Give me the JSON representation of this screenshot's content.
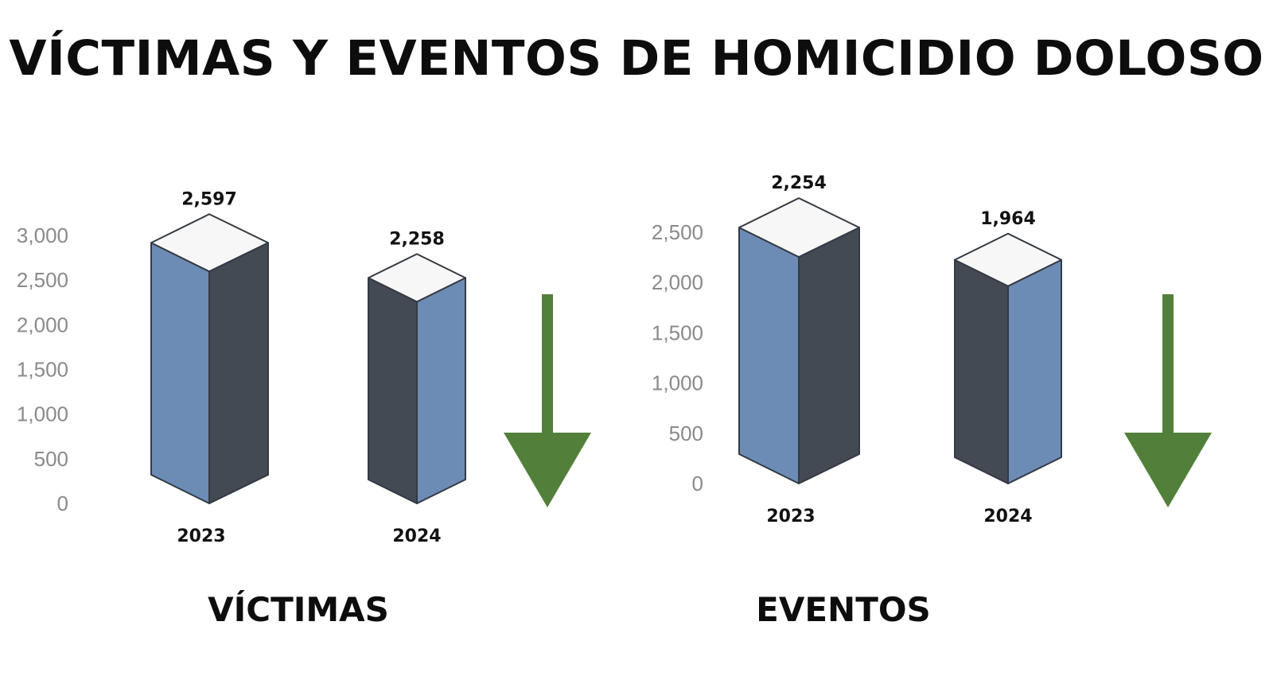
{
  "title": "VÍCTIMAS Y EVENTOS DE HOMICIDIO DOLOSO",
  "colors": {
    "blue_face": "#6d8cb5",
    "dark_face": "#434a54",
    "top_face": "#f7f7f7",
    "outline": "#333a44",
    "arrow": "#52803a",
    "tick_text": "#8a8a8a"
  },
  "chart_data": [
    {
      "type": "bar",
      "label": "VÍCTIMAS",
      "categories": [
        "2023",
        "2024"
      ],
      "values": [
        2597,
        2258
      ],
      "value_labels": [
        "2,597",
        "2,258"
      ],
      "ylim": [
        0,
        3000
      ],
      "yticks": [
        0,
        500,
        1000,
        1500,
        2000,
        2500,
        3000
      ],
      "ytick_labels": [
        "0",
        "500",
        "1,000",
        "1,500",
        "2,000",
        "2,500",
        "3,000"
      ],
      "grid": false,
      "trend": "down",
      "style": "3d-isometric"
    },
    {
      "type": "bar",
      "label": "EVENTOS",
      "categories": [
        "2023",
        "2024"
      ],
      "values": [
        2254,
        1964
      ],
      "value_labels": [
        "2,254",
        "1,964"
      ],
      "ylim": [
        0,
        2500
      ],
      "yticks": [
        0,
        500,
        1000,
        1500,
        2000,
        2500
      ],
      "ytick_labels": [
        "0",
        "500",
        "1,000",
        "1,500",
        "2,000",
        "2,500"
      ],
      "grid": false,
      "trend": "down",
      "style": "3d-isometric"
    }
  ]
}
